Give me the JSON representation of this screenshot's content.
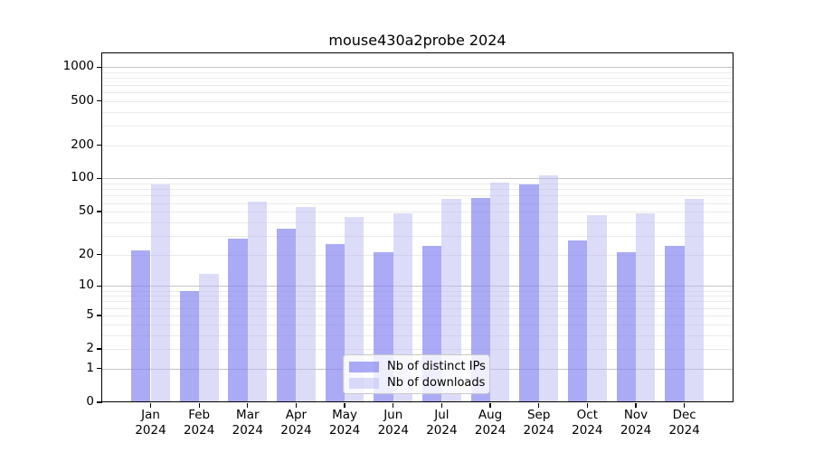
{
  "chart_data": {
    "type": "bar",
    "title": "mouse430a2probe 2024",
    "categories": [
      "Jan",
      "Feb",
      "Mar",
      "Apr",
      "May",
      "Jun",
      "Jul",
      "Aug",
      "Sep",
      "Oct",
      "Nov",
      "Dec"
    ],
    "x_tick_second_line": "2024",
    "series": [
      {
        "name": "Nb of distinct IPs",
        "color": "#7f7ff0",
        "alpha": 0.66,
        "values": [
          22,
          9,
          28,
          35,
          25,
          21,
          24,
          67,
          88,
          27,
          21,
          24
        ]
      },
      {
        "name": "Nb of downloads",
        "color": "#b4b4f2",
        "alpha": 0.47,
        "values": [
          89,
          13,
          62,
          55,
          45,
          48,
          65,
          91,
          106,
          46,
          48,
          65
        ]
      }
    ],
    "xlabel": "",
    "ylabel": "",
    "y_scale": "log10(value+1)",
    "y_ticks": [
      0,
      1,
      2,
      5,
      10,
      20,
      50,
      100,
      200,
      500,
      1000
    ],
    "ylim": [
      0,
      1325
    ],
    "grid": true,
    "legend_position": "lower center",
    "colors": {
      "major_grid": "#c6c6c6",
      "minor_grid": "#ebebeb",
      "axis": "#000000"
    }
  }
}
